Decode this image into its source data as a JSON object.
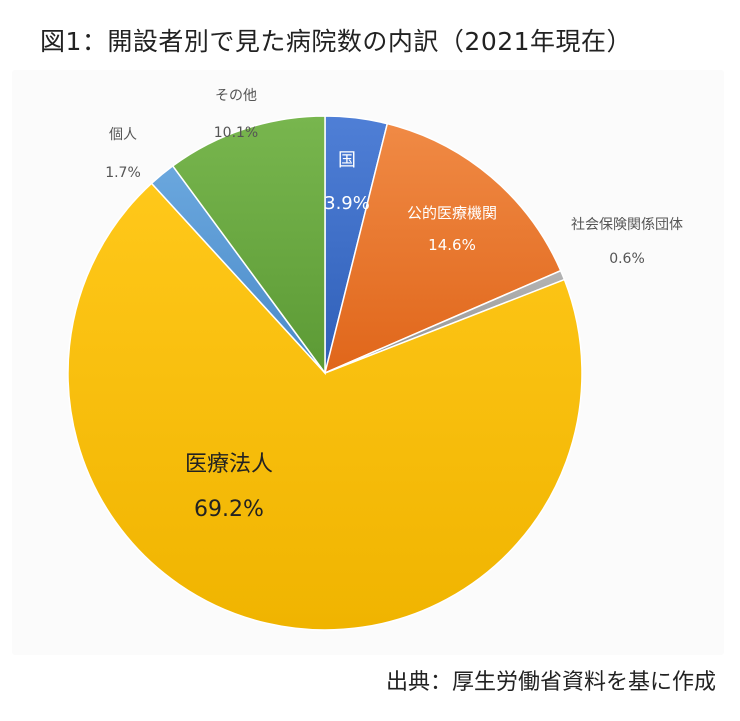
{
  "chart_data": {
    "type": "pie",
    "title": "図1：開設者別で見た病院数の内訳（2021年現在）",
    "slices": [
      {
        "label": "国",
        "value": 3.9,
        "value_label": "3.9%",
        "color": "#4472C4"
      },
      {
        "label": "公的医療機関",
        "value": 14.6,
        "value_label": "14.6%",
        "color": "#ED7D31"
      },
      {
        "label": "社会保険関係団体",
        "value": 0.6,
        "value_label": "0.6%",
        "color": "#A5A5A5"
      },
      {
        "label": "医療法人",
        "value": 69.2,
        "value_label": "69.2%",
        "color": "#FFC000"
      },
      {
        "label": "個人",
        "value": 1.7,
        "value_label": "1.7%",
        "color": "#5B9BD5"
      },
      {
        "label": "その他",
        "value": 10.1,
        "value_label": "10.1%",
        "color": "#70AD47"
      }
    ],
    "start": "12 o'clock",
    "direction": "clockwise"
  },
  "source": "出典：厚生労働省資料を基に作成"
}
